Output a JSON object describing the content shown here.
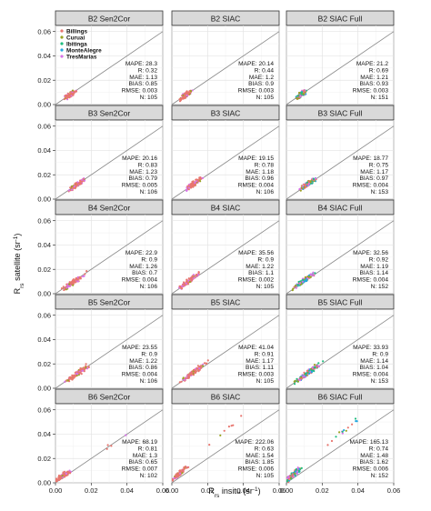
{
  "chart_data": {
    "type": "scatter",
    "xlabel": "R_rs insitu (sr^-1)",
    "ylabel": "R_rs satellite (sr^-1)",
    "xlim": [
      0,
      0.06
    ],
    "ylim": [
      0,
      0.065
    ],
    "xticks": [
      "0.00",
      "0.02",
      "0.04",
      "0.06"
    ],
    "yticks": [
      "0.00",
      "0.02",
      "0.04",
      "0.06"
    ],
    "grid": true,
    "one_to_one_line": true,
    "legend": {
      "placement": "top-left of first panel",
      "entries": [
        {
          "name": "Billings",
          "color": "#e8766f"
        },
        {
          "name": "Curuai",
          "color": "#9aa321"
        },
        {
          "name": "Ibitinga",
          "color": "#1fbd7f"
        },
        {
          "name": "MonteAlegre",
          "color": "#24a7e0"
        },
        {
          "name": "TresMarias",
          "color": "#d773e8"
        }
      ]
    },
    "stat_labels": [
      "MAPE",
      "R",
      "MAE",
      "BIAS",
      "RMSE",
      "N"
    ],
    "panels": [
      {
        "title": "B2 Sen2Cor",
        "stats": {
          "MAPE": "28.3",
          "R": "0.32",
          "MAE": "1.13",
          "BIAS": "0.85",
          "RMSE": "0.003",
          "N": "105"
        }
      },
      {
        "title": "B2 SIAC",
        "stats": {
          "MAPE": "20.14",
          "R": "0.44",
          "MAE": "1.2",
          "BIAS": "0.9",
          "RMSE": "0.003",
          "N": "105"
        }
      },
      {
        "title": "B2 SIAC Full",
        "stats": {
          "MAPE": "21.2",
          "R": "0.69",
          "MAE": "1.21",
          "BIAS": "0.93",
          "RMSE": "0.003",
          "N": "151"
        }
      },
      {
        "title": "B3 Sen2Cor",
        "stats": {
          "MAPE": "20.16",
          "R": "0.83",
          "MAE": "1.23",
          "BIAS": "0.79",
          "RMSE": "0.005",
          "N": "106"
        }
      },
      {
        "title": "B3 SIAC",
        "stats": {
          "MAPE": "19.15",
          "R": "0.78",
          "MAE": "1.18",
          "BIAS": "0.96",
          "RMSE": "0.004",
          "N": "106"
        }
      },
      {
        "title": "B3 SIAC Full",
        "stats": {
          "MAPE": "18.77",
          "R": "0.75",
          "MAE": "1.17",
          "BIAS": "0.97",
          "RMSE": "0.004",
          "N": "153"
        }
      },
      {
        "title": "B4 Sen2Cor",
        "stats": {
          "MAPE": "22.9",
          "R": "0.9",
          "MAE": "1.26",
          "BIAS": "0.7",
          "RMSE": "0.004",
          "N": "106"
        }
      },
      {
        "title": "B4 SIAC",
        "stats": {
          "MAPE": "35.56",
          "R": "0.9",
          "MAE": "1.22",
          "BIAS": "1.1",
          "RMSE": "0.002",
          "N": "105"
        }
      },
      {
        "title": "B4 SIAC Full",
        "stats": {
          "MAPE": "32.56",
          "R": "0.92",
          "MAE": "1.19",
          "BIAS": "1.14",
          "RMSE": "0.004",
          "N": "152"
        }
      },
      {
        "title": "B5 Sen2Cor",
        "stats": {
          "MAPE": "23.55",
          "R": "0.9",
          "MAE": "1.22",
          "BIAS": "0.86",
          "RMSE": "0.004",
          "N": "106"
        }
      },
      {
        "title": "B5 SIAC",
        "stats": {
          "MAPE": "41.04",
          "R": "0.91",
          "MAE": "1.17",
          "BIAS": "1.11",
          "RMSE": "0.003",
          "N": "105"
        }
      },
      {
        "title": "B5 SIAC Full",
        "stats": {
          "MAPE": "33.93",
          "R": "0.9",
          "MAE": "1.14",
          "BIAS": "1.04",
          "RMSE": "0.004",
          "N": "153"
        }
      },
      {
        "title": "B6 Sen2Cor",
        "stats": {
          "MAPE": "68.19",
          "R": "0.81",
          "MAE": "1.3",
          "BIAS": "0.65",
          "RMSE": "0.007",
          "N": "102"
        }
      },
      {
        "title": "B6 SIAC",
        "stats": {
          "MAPE": "222.06",
          "R": "0.63",
          "MAE": "1.54",
          "BIAS": "1.85",
          "RMSE": "0.006",
          "N": "105"
        }
      },
      {
        "title": "B6 SIAC Full",
        "stats": {
          "MAPE": "165.13",
          "R": "0.74",
          "MAE": "1.48",
          "BIAS": "1.62",
          "RMSE": "0.006",
          "N": "152"
        }
      }
    ]
  }
}
